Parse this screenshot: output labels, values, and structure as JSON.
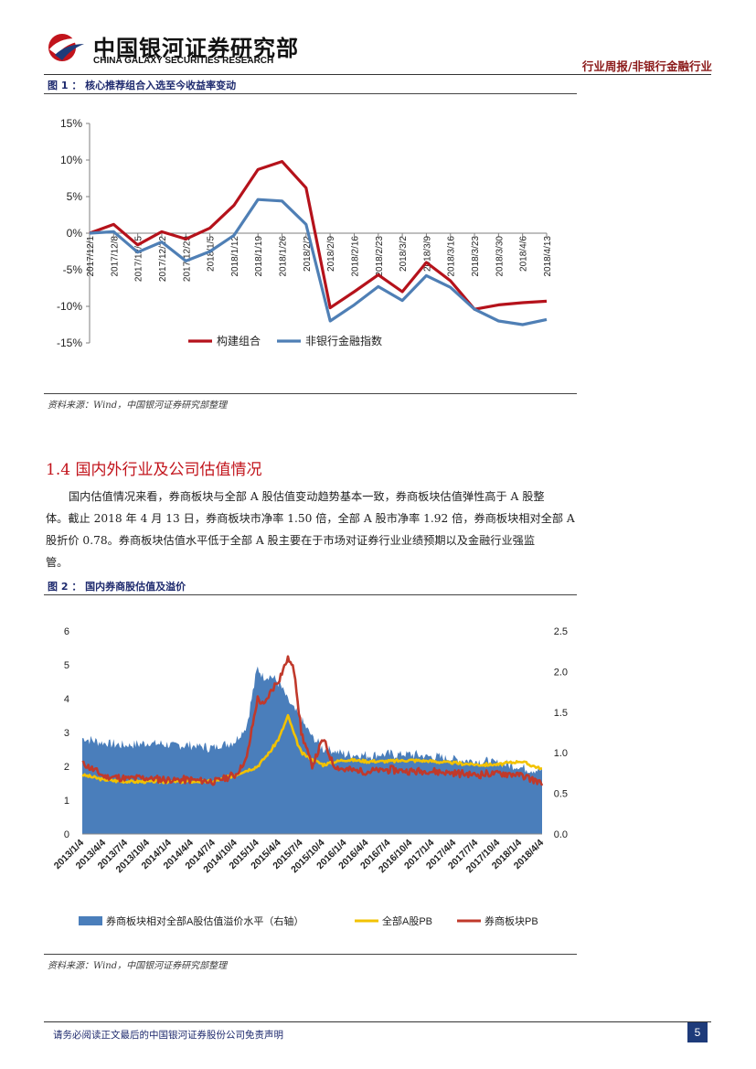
{
  "header": {
    "logo_cn": "中国银河证券研究部",
    "logo_en": "CHINA GALAXY SECURITIES RESEARCH",
    "right": "行业周报/非银行金融行业",
    "brand_color": "#c2141c",
    "logo_icon": "galaxy-logo-icon"
  },
  "figure1": {
    "title": "图 1 ： 核心推荐组合入选至今收益率变动",
    "source": "资料来源：Wind，中国银河证券研究部整理"
  },
  "section": {
    "title": "1.4  国内外行业及公司估值情况",
    "paragraph_lines": [
      "国内估值情况来看，券商板块与全部 A 股估值变动趋势基本一致，券商板块估值弹性高于 A 股整",
      "体。截止 2018 年 4 月 13 日，券商板块市净率 1.50 倍，全部 A 股市净率 1.92 倍，券商板块相对全部 A",
      "股折价 0.78。券商板块估值水平低于全部 A 股主要在于市场对证券行业业绩预期以及金融行业强监",
      "管。"
    ]
  },
  "figure2": {
    "title": "图 2 ： 国内券商股估值及溢价",
    "source": "资料来源：Wind，中国银河证券研究部整理"
  },
  "footer": {
    "disclaimer": "请务必阅读正文最后的中国银河证券股份公司免责声明",
    "page": "5"
  },
  "chart_data": [
    {
      "type": "line",
      "x": [
        "2017/12/1",
        "2017/12/8",
        "2017/12/15",
        "2017/12/22",
        "2017/12/29",
        "2018/1/5",
        "2018/1/12",
        "2018/1/19",
        "2018/1/26",
        "2018/2/2",
        "2018/2/9",
        "2018/2/16",
        "2018/2/23",
        "2018/3/2",
        "2018/3/9",
        "2018/3/16",
        "2018/3/23",
        "2018/3/30",
        "2018/4/6",
        "2018/4/13"
      ],
      "series": [
        {
          "name": "构建组合",
          "color": "#b5121b",
          "values": [
            0.0,
            1.2,
            -1.6,
            0.2,
            -0.8,
            0.7,
            3.8,
            8.7,
            9.8,
            6.2,
            -10.2,
            -8.0,
            -5.7,
            -8.0,
            -4.0,
            -6.5,
            -10.4,
            -9.8,
            -9.5,
            -9.3
          ]
        },
        {
          "name": "非银行金融指数",
          "color": "#4f7fb5",
          "values": [
            0.0,
            0.2,
            -2.6,
            -1.2,
            -3.8,
            -2.5,
            -0.3,
            4.6,
            4.4,
            1.2,
            -12.0,
            -9.8,
            -7.3,
            -9.2,
            -5.8,
            -7.4,
            -10.4,
            -12.0,
            -12.5,
            -11.8
          ]
        }
      ],
      "ylim": [
        -15,
        15
      ],
      "yticks": [
        "15%",
        "10%",
        "5%",
        "0%",
        "-5%",
        "-10%",
        "-15%"
      ],
      "legend": "bottom"
    },
    {
      "type": "area",
      "x": [
        "2013/1/4",
        "2013/4/4",
        "2013/7/4",
        "2013/10/4",
        "2014/1/4",
        "2014/4/4",
        "2014/7/4",
        "2014/10/4",
        "2015/1/4",
        "2015/4/4",
        "2015/7/4",
        "2015/10/4",
        "2016/1/4",
        "2016/4/4",
        "2016/7/4",
        "2016/10/4",
        "2017/1/4",
        "2017/4/4",
        "2017/7/4",
        "2017/10/4",
        "2018/1/4",
        "2018/4/4"
      ],
      "series": [
        {
          "name": "券商板块相对全部A股估值溢价水平（右轴）",
          "axis": "right",
          "color": "#4a7ebb",
          "points": [
            [
              0,
              1.18
            ],
            [
              1,
              1.12
            ],
            [
              2,
              1.09
            ],
            [
              3,
              1.12
            ],
            [
              4,
              1.1
            ],
            [
              5,
              1.09
            ],
            [
              6,
              1.06
            ],
            [
              7,
              1.15
            ],
            [
              7.5,
              1.32
            ],
            [
              8,
              2.05
            ],
            [
              8.3,
              1.92
            ],
            [
              8.6,
              1.95
            ],
            [
              9,
              1.85
            ],
            [
              9.5,
              1.6
            ],
            [
              10,
              1.4
            ],
            [
              10.5,
              1.2
            ],
            [
              11,
              1.05
            ],
            [
              11.5,
              1.02
            ],
            [
              12,
              0.98
            ],
            [
              13,
              0.97
            ],
            [
              14,
              0.98
            ],
            [
              15,
              0.98
            ],
            [
              16,
              0.95
            ],
            [
              17,
              0.92
            ],
            [
              18,
              0.9
            ],
            [
              19,
              0.88
            ],
            [
              20,
              0.82
            ],
            [
              21,
              0.78
            ]
          ]
        },
        {
          "name": "全部A股PB",
          "axis": "left",
          "color": "#f2c200",
          "points": [
            [
              0,
              1.75
            ],
            [
              1,
              1.6
            ],
            [
              2,
              1.55
            ],
            [
              3,
              1.55
            ],
            [
              4,
              1.55
            ],
            [
              5,
              1.55
            ],
            [
              6,
              1.55
            ],
            [
              7,
              1.75
            ],
            [
              8,
              2.0
            ],
            [
              8.6,
              2.45
            ],
            [
              9,
              2.85
            ],
            [
              9.4,
              3.5
            ],
            [
              9.7,
              2.9
            ],
            [
              10,
              2.4
            ],
            [
              10.5,
              2.2
            ],
            [
              11,
              2.05
            ],
            [
              12,
              2.2
            ],
            [
              13,
              2.15
            ],
            [
              14,
              2.15
            ],
            [
              15,
              2.18
            ],
            [
              16,
              2.15
            ],
            [
              17,
              2.1
            ],
            [
              18,
              2.05
            ],
            [
              19,
              2.05
            ],
            [
              20,
              2.15
            ],
            [
              21,
              1.92
            ]
          ]
        },
        {
          "name": "券商板块PB",
          "axis": "left",
          "color": "#c0392b",
          "points": [
            [
              0,
              2.1
            ],
            [
              1,
              1.7
            ],
            [
              2,
              1.65
            ],
            [
              3,
              1.65
            ],
            [
              4,
              1.6
            ],
            [
              5,
              1.6
            ],
            [
              6,
              1.55
            ],
            [
              7,
              1.75
            ],
            [
              7.5,
              2.2
            ],
            [
              8,
              4.0
            ],
            [
              8.3,
              3.8
            ],
            [
              8.6,
              4.2
            ],
            [
              9,
              4.6
            ],
            [
              9.4,
              5.2
            ],
            [
              9.7,
              4.8
            ],
            [
              10,
              3.0
            ],
            [
              10.5,
              2.0
            ],
            [
              11,
              2.8
            ],
            [
              11.5,
              2.0
            ],
            [
              12,
              1.9
            ],
            [
              13,
              1.85
            ],
            [
              14,
              1.9
            ],
            [
              15,
              1.85
            ],
            [
              16,
              1.85
            ],
            [
              17,
              1.8
            ],
            [
              18,
              1.75
            ],
            [
              19,
              1.8
            ],
            [
              20,
              1.75
            ],
            [
              21,
              1.5
            ]
          ]
        }
      ],
      "ylim_left": [
        0,
        6
      ],
      "ylim_right": [
        0,
        2.5
      ],
      "yticks_left": [
        "0",
        "1",
        "2",
        "3",
        "4",
        "5",
        "6"
      ],
      "yticks_right": [
        "0.0",
        "0.5",
        "1.0",
        "1.5",
        "2.0",
        "2.5"
      ],
      "legend": "bottom"
    }
  ]
}
